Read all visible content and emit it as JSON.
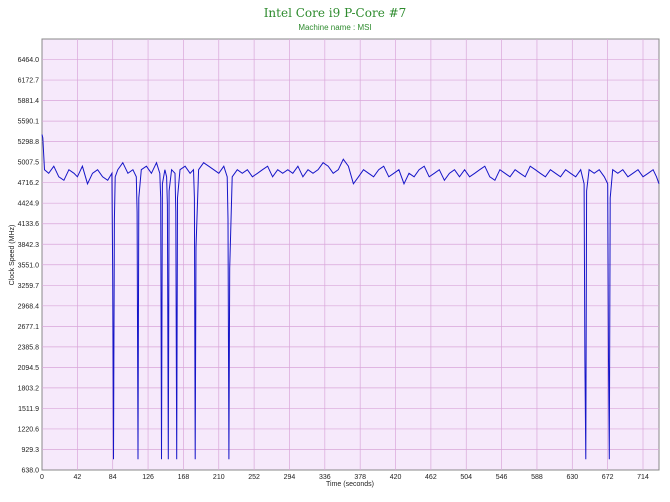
{
  "chart_data": {
    "type": "line",
    "title": "Intel Core i9 P-Core #7",
    "subtitle": "Machine name : MSI",
    "xlabel": "Time (seconds)",
    "ylabel": "Clock Speed (MHz)",
    "xlim": [
      0,
      733
    ],
    "ylim": [
      638.0,
      6755.8
    ],
    "x_ticks": [
      0,
      42,
      84,
      126,
      168,
      210,
      252,
      294,
      336,
      378,
      420,
      462,
      504,
      546,
      588,
      630,
      672,
      714
    ],
    "y_ticks": [
      638.0,
      929.3,
      1220.6,
      1511.9,
      1803.2,
      2094.5,
      2385.8,
      2677.1,
      2968.4,
      3259.7,
      3551.0,
      3842.3,
      4133.6,
      4424.9,
      4716.2,
      5007.5,
      5298.8,
      5590.1,
      5881.4,
      6172.7,
      6464.0
    ],
    "grid": true,
    "colors": {
      "plot_bg": "#f6e9fb",
      "grid": "#d9a6d9",
      "line": "#1515c8",
      "title": "#2e8b2e"
    },
    "series": [
      {
        "x": [
          0,
          1,
          3,
          8,
          14,
          20,
          26,
          32,
          38,
          42,
          48,
          54,
          60,
          66,
          72,
          78,
          83,
          84,
          85,
          86,
          87,
          90,
          96,
          102,
          108,
          112,
          113,
          114,
          115,
          118,
          124,
          130,
          136,
          140,
          141,
          142,
          143,
          146,
          148,
          149,
          150,
          151,
          154,
          158,
          159,
          160,
          161,
          164,
          170,
          176,
          180,
          181,
          182,
          183,
          186,
          192,
          198,
          204,
          210,
          216,
          220,
          221,
          222,
          223,
          226,
          232,
          238,
          244,
          250,
          256,
          262,
          268,
          274,
          280,
          286,
          292,
          298,
          304,
          310,
          316,
          322,
          328,
          334,
          340,
          346,
          352,
          358,
          364,
          370,
          376,
          382,
          388,
          394,
          400,
          406,
          412,
          418,
          424,
          430,
          436,
          442,
          448,
          454,
          460,
          466,
          472,
          478,
          484,
          490,
          496,
          502,
          508,
          514,
          520,
          526,
          532,
          538,
          544,
          550,
          556,
          562,
          568,
          574,
          580,
          586,
          592,
          598,
          604,
          610,
          616,
          622,
          628,
          634,
          640,
          644,
          645,
          646,
          647,
          650,
          656,
          662,
          668,
          672,
          673,
          674,
          675,
          678,
          684,
          690,
          696,
          702,
          708,
          714,
          720,
          726,
          730,
          733
        ],
        "values": [
          5400,
          5350,
          4900,
          4850,
          4950,
          4800,
          4750,
          4900,
          4850,
          4800,
          4950,
          4700,
          4850,
          4900,
          4800,
          4750,
          4850,
          3400,
          790,
          4200,
          4800,
          4900,
          5000,
          4850,
          4900,
          4800,
          4300,
          790,
          4500,
          4900,
          4950,
          4850,
          5000,
          4850,
          4500,
          790,
          4700,
          4900,
          4800,
          4400,
          790,
          4600,
          4900,
          4850,
          4300,
          790,
          4500,
          4900,
          4950,
          4850,
          4900,
          4500,
          790,
          3800,
          4900,
          5000,
          4950,
          4900,
          4850,
          4950,
          4800,
          4200,
          790,
          3500,
          4800,
          4900,
          4850,
          4900,
          4800,
          4850,
          4900,
          4950,
          4800,
          4900,
          4850,
          4900,
          4850,
          4950,
          4800,
          4900,
          4850,
          4900,
          5000,
          4950,
          4850,
          4900,
          5050,
          4950,
          4700,
          4800,
          4900,
          4850,
          4800,
          4900,
          4950,
          4800,
          4850,
          4900,
          4700,
          4850,
          4800,
          4900,
          4950,
          4800,
          4850,
          4900,
          4750,
          4850,
          4900,
          4800,
          4900,
          4800,
          4850,
          4900,
          4950,
          4800,
          4750,
          4900,
          4850,
          4800,
          4900,
          4850,
          4800,
          4950,
          4900,
          4850,
          4800,
          4900,
          4850,
          4800,
          4900,
          4850,
          4800,
          4900,
          4700,
          2200,
          790,
          4600,
          4900,
          4850,
          4900,
          4800,
          4700,
          2200,
          790,
          4500,
          4900,
          4850,
          4900,
          4800,
          4850,
          4900,
          4800,
          4850,
          4900,
          4800,
          4700
        ]
      }
    ]
  }
}
